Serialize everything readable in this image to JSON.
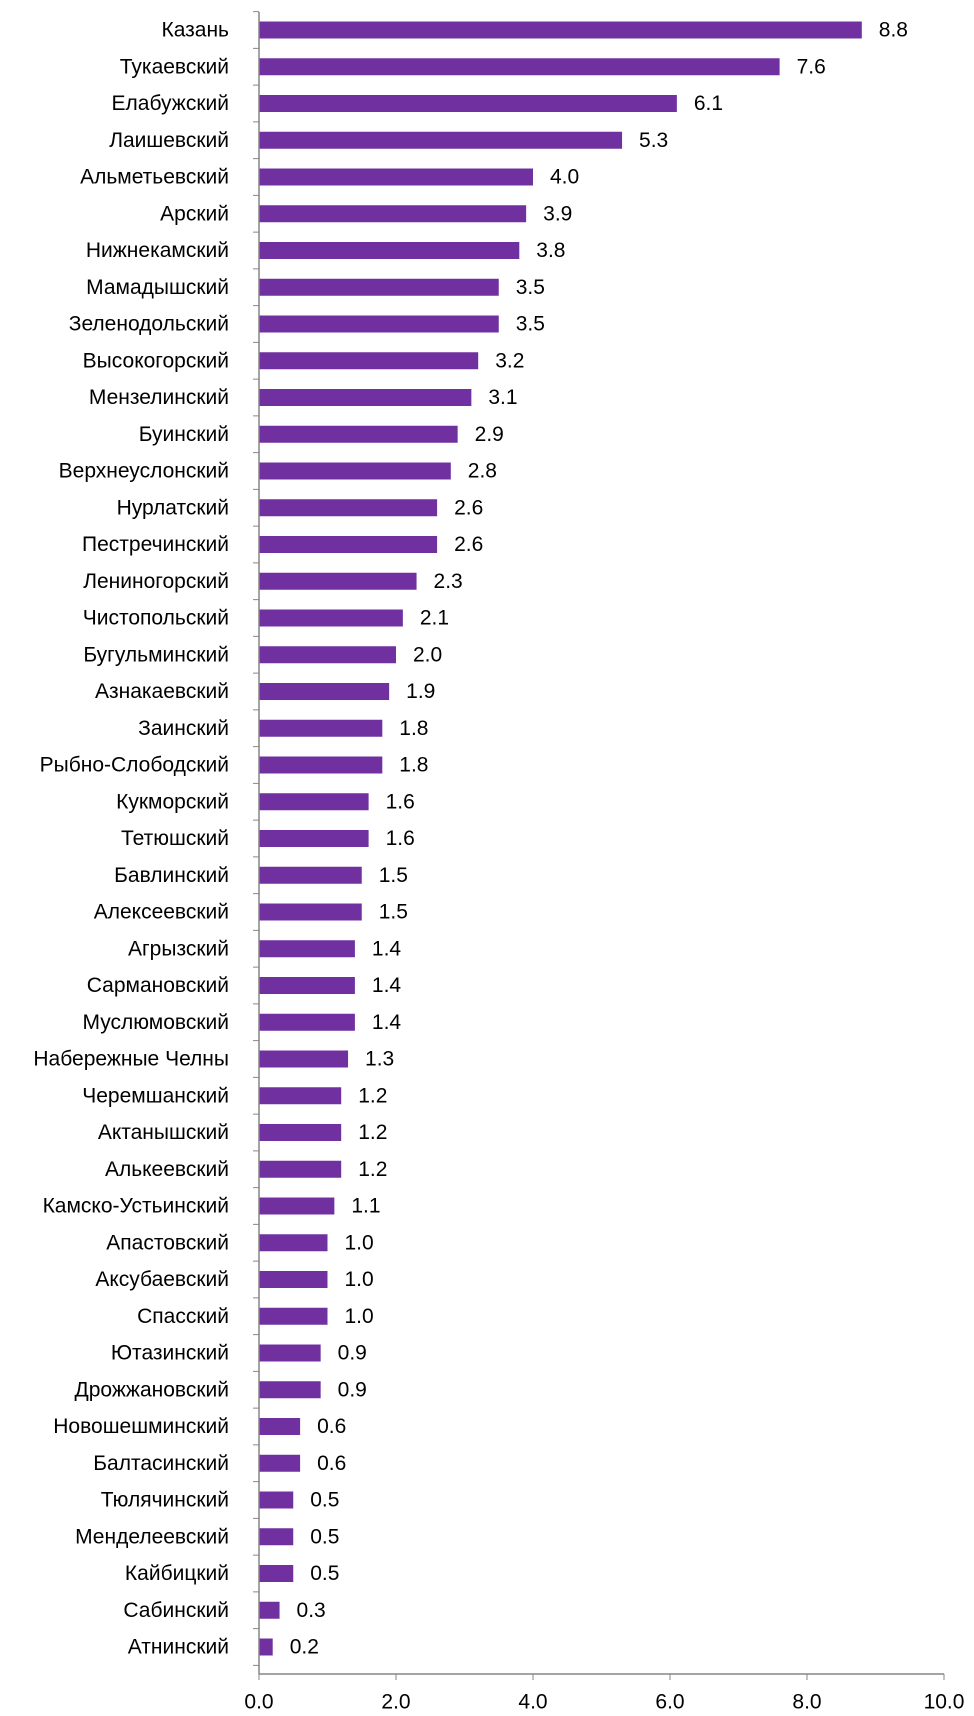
{
  "chart_data": {
    "type": "bar",
    "orientation": "horizontal",
    "categories": [
      "Казань",
      "Тукаевский",
      "Елабужский",
      "Лаишевский",
      "Альметьевский",
      "Арский",
      "Нижнекамский",
      "Мамадышский",
      "Зеленодольский",
      "Высокогорский",
      "Мензелинский",
      "Буинский",
      "Верхнеуслонский",
      "Нурлатский",
      "Пестречинский",
      "Лениногорский",
      "Чистопольский",
      "Бугульминский",
      "Азнакаевский",
      "Заинский",
      "Рыбно-Слободский",
      "Кукморский",
      "Тетюшский",
      "Бавлинский",
      "Алексеевский",
      "Агрызский",
      "Сармановский",
      "Муслюмовский",
      "Набережные Челны",
      "Черемшанский",
      "Актанышский",
      "Алькеевский",
      "Камско-Устьинский",
      "Апастовский",
      "Аксубаевский",
      "Спасский",
      "Ютазинский",
      "Дрожжановский",
      "Новошешминский",
      "Балтасинский",
      "Тюлячинский",
      "Менделеевский",
      "Кайбицкий",
      "Сабинский",
      "Атнинский"
    ],
    "values": [
      8.8,
      7.6,
      6.1,
      5.3,
      4.0,
      3.9,
      3.8,
      3.5,
      3.5,
      3.2,
      3.1,
      2.9,
      2.8,
      2.6,
      2.6,
      2.3,
      2.1,
      2.0,
      1.9,
      1.8,
      1.8,
      1.6,
      1.6,
      1.5,
      1.5,
      1.4,
      1.4,
      1.4,
      1.3,
      1.2,
      1.2,
      1.2,
      1.1,
      1.0,
      1.0,
      1.0,
      0.9,
      0.9,
      0.6,
      0.6,
      0.5,
      0.5,
      0.5,
      0.3,
      0.2
    ],
    "value_labels": [
      "8.8",
      "7.6",
      "6.1",
      "5.3",
      "4.0",
      "3.9",
      "3.8",
      "3.5",
      "3.5",
      "3.2",
      "3.1",
      "2.9",
      "2.8",
      "2.6",
      "2.6",
      "2.3",
      "2.1",
      "2.0",
      "1.9",
      "1.8",
      "1.8",
      "1.6",
      "1.6",
      "1.5",
      "1.5",
      "1.4",
      "1.4",
      "1.4",
      "1.3",
      "1.2",
      "1.2",
      "1.2",
      "1.1",
      "1.0",
      "1.0",
      "1.0",
      "0.9",
      "0.9",
      "0.6",
      "0.6",
      "0.5",
      "0.5",
      "0.5",
      "0.3",
      "0.2"
    ],
    "xlim": [
      0,
      10
    ],
    "x_ticks": [
      0,
      2,
      4,
      6,
      8,
      10
    ],
    "x_tick_labels": [
      "0.0",
      "2.0",
      "4.0",
      "6.0",
      "8.0",
      "10.0"
    ],
    "title": "",
    "xlabel": "",
    "ylabel": "",
    "grid": false,
    "legend": "none",
    "bar_color": "#7030a0",
    "axis_color": "#868686",
    "text_color": "#000000"
  }
}
